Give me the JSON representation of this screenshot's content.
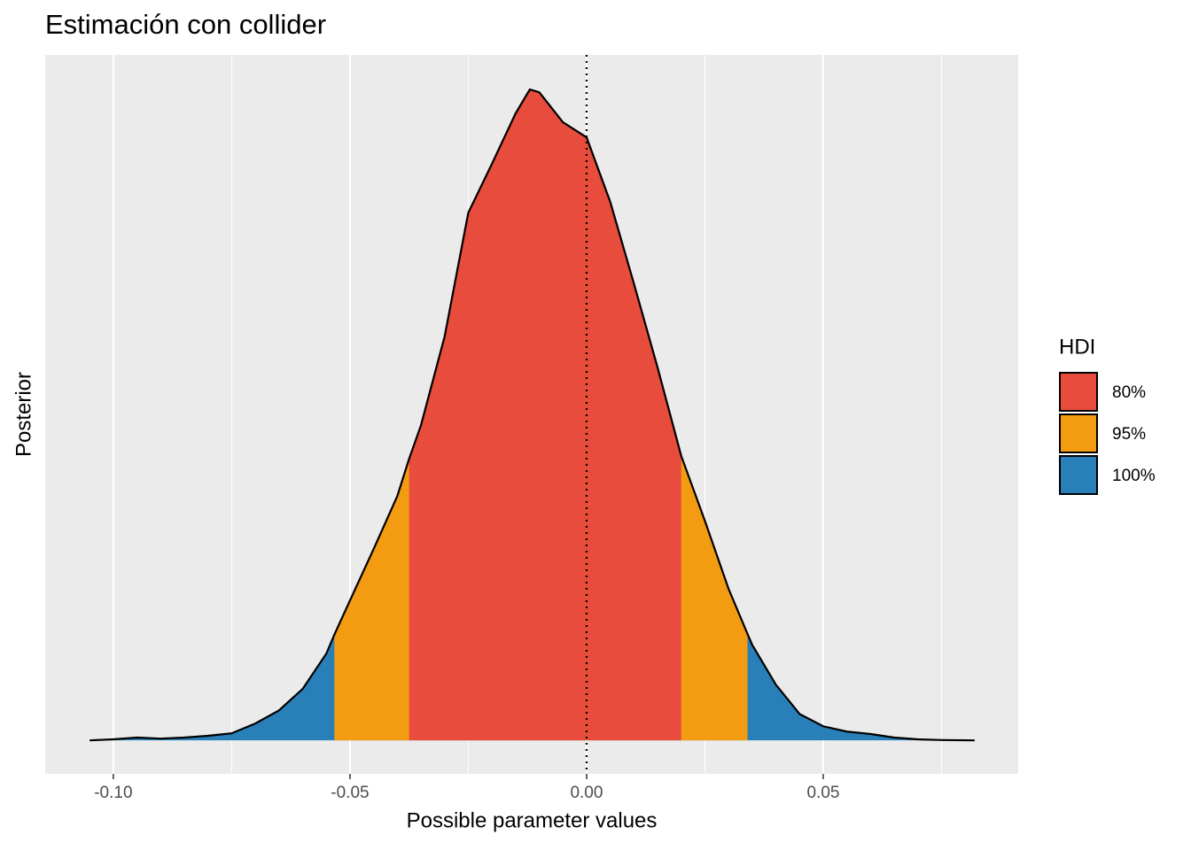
{
  "chart_data": {
    "type": "density",
    "title": "Estimación con collider",
    "x_label": "Possible parameter values",
    "y_label": "Posterior",
    "x": [
      -0.105,
      -0.1,
      -0.095,
      -0.09,
      -0.085,
      -0.08,
      -0.075,
      -0.07,
      -0.065,
      -0.06,
      -0.055,
      -0.0533,
      -0.05,
      -0.045,
      -0.04,
      -0.0375,
      -0.035,
      -0.03,
      -0.025,
      -0.02,
      -0.015,
      -0.012,
      -0.01,
      -0.005,
      0,
      0.005,
      0.01,
      0.015,
      0.02,
      0.025,
      0.03,
      0.034,
      0.035,
      0.04,
      0.045,
      0.05,
      0.055,
      0.06,
      0.065,
      0.07,
      0.075,
      0.082
    ],
    "values": [
      0,
      0.03,
      0.08,
      0.05,
      0.08,
      0.13,
      0.2,
      0.48,
      0.85,
      1.46,
      2.46,
      3.0,
      3.97,
      5.43,
      6.93,
      7.99,
      8.94,
      11.46,
      14.97,
      16.36,
      17.79,
      18.47,
      18.39,
      17.54,
      17.11,
      15.28,
      12.96,
      10.58,
      8.07,
      6.23,
      4.3,
      3.02,
      2.71,
      1.58,
      0.75,
      0.4,
      0.25,
      0.18,
      0.08,
      0.03,
      0.01,
      0
    ],
    "hdi_title": "HDI",
    "hdi": [
      {
        "name": "80%",
        "color": "#e74c3c",
        "range": [
          -0.0375,
          0.02
        ]
      },
      {
        "name": "95%",
        "color": "#f39c12",
        "range": [
          -0.0533,
          0.034
        ]
      },
      {
        "name": "100%",
        "color": "#2980b9",
        "range": [
          -0.105,
          0.082
        ]
      }
    ],
    "vline": 0,
    "xlim": [
      -0.1144,
      0.0912
    ],
    "ylim": [
      -0.95,
      19.45
    ],
    "xticks": [
      {
        "value": -0.1,
        "label": "-0.10"
      },
      {
        "value": -0.05,
        "label": "-0.05"
      },
      {
        "value": 0,
        "label": "0.00"
      },
      {
        "value": 0.05,
        "label": "0.05"
      }
    ],
    "xminor": [
      -0.075,
      -0.025,
      0.025,
      0.075
    ],
    "grid": true,
    "legend": "right"
  }
}
